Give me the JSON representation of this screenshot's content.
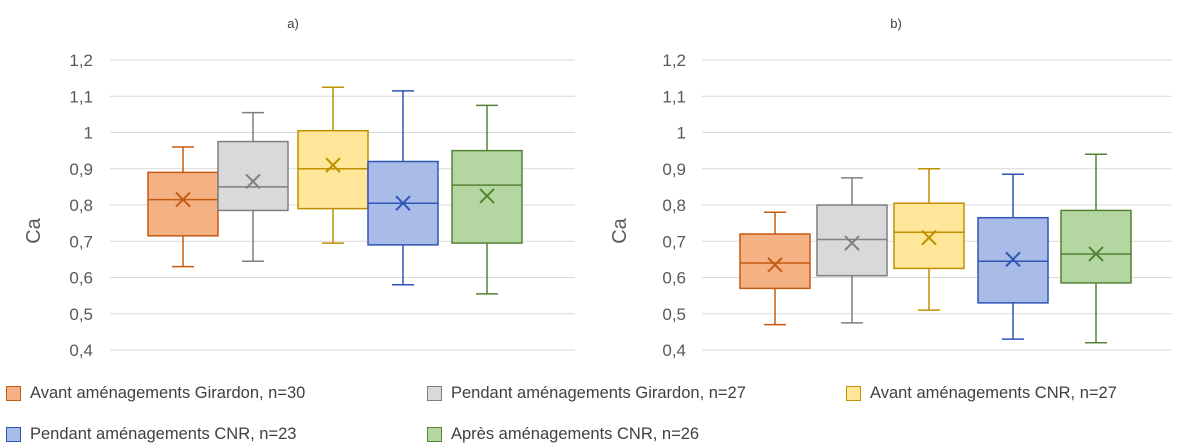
{
  "chart_data": [
    {
      "type": "box",
      "title": "a)",
      "ylabel": "Ca",
      "ylim": [
        0.4,
        1.2
      ],
      "yticks": [
        "0,4",
        "0,5",
        "0,6",
        "0,7",
        "0,8",
        "0,9",
        "1",
        "1,1",
        "1,2"
      ],
      "grid": true,
      "series": [
        {
          "name": "Avant aménagements Girardon, n=30",
          "min": 0.63,
          "q1": 0.715,
          "median": 0.815,
          "q3": 0.89,
          "max": 0.96,
          "mean": 0.815
        },
        {
          "name": "Pendant aménagements Girardon, n=27",
          "min": 0.645,
          "q1": 0.785,
          "median": 0.85,
          "q3": 0.975,
          "max": 1.055,
          "mean": 0.865
        },
        {
          "name": "Avant aménagements CNR, n=27",
          "min": 0.695,
          "q1": 0.79,
          "median": 0.9,
          "q3": 1.005,
          "max": 1.125,
          "mean": 0.91
        },
        {
          "name": "Pendant aménagements CNR, n=23",
          "min": 0.58,
          "q1": 0.69,
          "median": 0.805,
          "q3": 0.92,
          "max": 1.115,
          "mean": 0.805
        },
        {
          "name": "Après aménagements CNR, n=26",
          "min": 0.555,
          "q1": 0.695,
          "median": 0.855,
          "q3": 0.95,
          "max": 1.075,
          "mean": 0.825
        }
      ]
    },
    {
      "type": "box",
      "title": "b)",
      "ylabel": "Ca",
      "ylim": [
        0.4,
        1.2
      ],
      "yticks": [
        "0,4",
        "0,5",
        "0,6",
        "0,7",
        "0,8",
        "0,9",
        "1",
        "1,1",
        "1,2"
      ],
      "grid": true,
      "series": [
        {
          "name": "Avant aménagements Girardon, n=30",
          "min": 0.47,
          "q1": 0.57,
          "median": 0.64,
          "q3": 0.72,
          "max": 0.78,
          "mean": 0.635
        },
        {
          "name": "Pendant aménagements Girardon, n=27",
          "min": 0.475,
          "q1": 0.605,
          "median": 0.705,
          "q3": 0.8,
          "max": 0.875,
          "mean": 0.695
        },
        {
          "name": "Avant aménagements CNR, n=27",
          "min": 0.51,
          "q1": 0.625,
          "median": 0.725,
          "q3": 0.805,
          "max": 0.9,
          "mean": 0.71
        },
        {
          "name": "Pendant aménagements CNR, n=23",
          "min": 0.43,
          "q1": 0.53,
          "median": 0.645,
          "q3": 0.765,
          "max": 0.885,
          "mean": 0.65
        },
        {
          "name": "Après aménagements CNR, n=26",
          "min": 0.42,
          "q1": 0.585,
          "median": 0.665,
          "q3": 0.785,
          "max": 0.94,
          "mean": 0.665
        }
      ]
    }
  ],
  "colors": [
    {
      "fill": "#f4b183",
      "stroke": "#c55a11"
    },
    {
      "fill": "#d9d9d9",
      "stroke": "#7f7f7f"
    },
    {
      "fill": "#ffe699",
      "stroke": "#bf9000"
    },
    {
      "fill": "#a9bbe7",
      "stroke": "#2f55b5"
    },
    {
      "fill": "#b4d6a0",
      "stroke": "#548235"
    }
  ],
  "legend": [
    "Avant aménagements Girardon, n=30",
    "Pendant aménagements Girardon, n=27",
    "Avant aménagements CNR, n=27",
    "Pendant aménagements CNR, n=23",
    "Après aménagements CNR, n=26"
  ]
}
